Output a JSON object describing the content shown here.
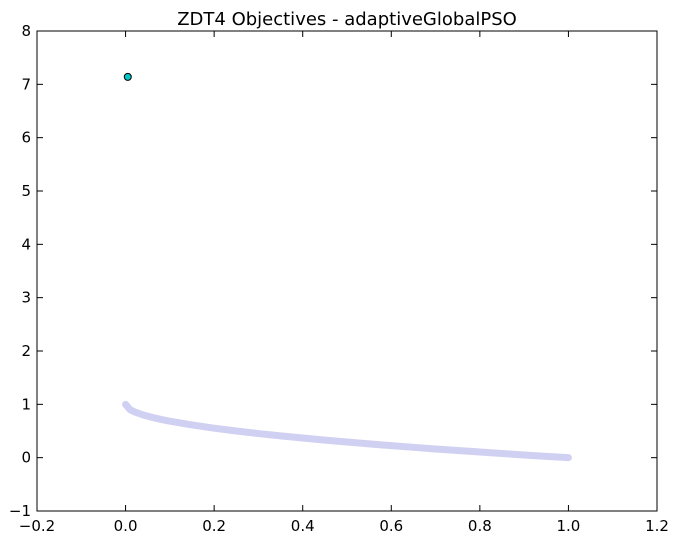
{
  "chart_data": {
    "type": "scatter",
    "title": "ZDT4 Objectives - adaptiveGlobalPSO",
    "xlabel": "",
    "ylabel": "",
    "xlim": [
      -0.2,
      1.2
    ],
    "ylim": [
      -1,
      8
    ],
    "x_ticks": [
      -0.2,
      0.0,
      0.2,
      0.4,
      0.6,
      0.8,
      1.0,
      1.2
    ],
    "x_tick_labels": [
      "−0.2",
      "0.0",
      "0.2",
      "0.4",
      "0.6",
      "0.8",
      "1.0",
      "1.2"
    ],
    "y_ticks": [
      -1,
      0,
      1,
      2,
      3,
      4,
      5,
      6,
      7,
      8
    ],
    "y_tick_labels": [
      "−1",
      "0",
      "1",
      "2",
      "3",
      "4",
      "5",
      "6",
      "7",
      "8"
    ],
    "grid": false,
    "legend": "none",
    "series": [
      {
        "kind": "reference-front",
        "color": "#c8c8f0",
        "x": [
          0.0,
          0.01,
          0.02,
          0.04,
          0.06,
          0.08,
          0.1,
          0.15,
          0.2,
          0.25,
          0.3,
          0.35,
          0.4,
          0.45,
          0.5,
          0.55,
          0.6,
          0.65,
          0.7,
          0.75,
          0.8,
          0.85,
          0.9,
          0.95,
          1.0
        ],
        "y": [
          1.0,
          0.9,
          0.859,
          0.8,
          0.755,
          0.717,
          0.684,
          0.613,
          0.553,
          0.5,
          0.452,
          0.408,
          0.368,
          0.329,
          0.293,
          0.258,
          0.225,
          0.194,
          0.163,
          0.134,
          0.106,
          0.078,
          0.051,
          0.025,
          0.0
        ]
      },
      {
        "kind": "solution",
        "color": "#00c8c8",
        "x": [
          0.005
        ],
        "y": [
          7.14
        ]
      }
    ]
  }
}
